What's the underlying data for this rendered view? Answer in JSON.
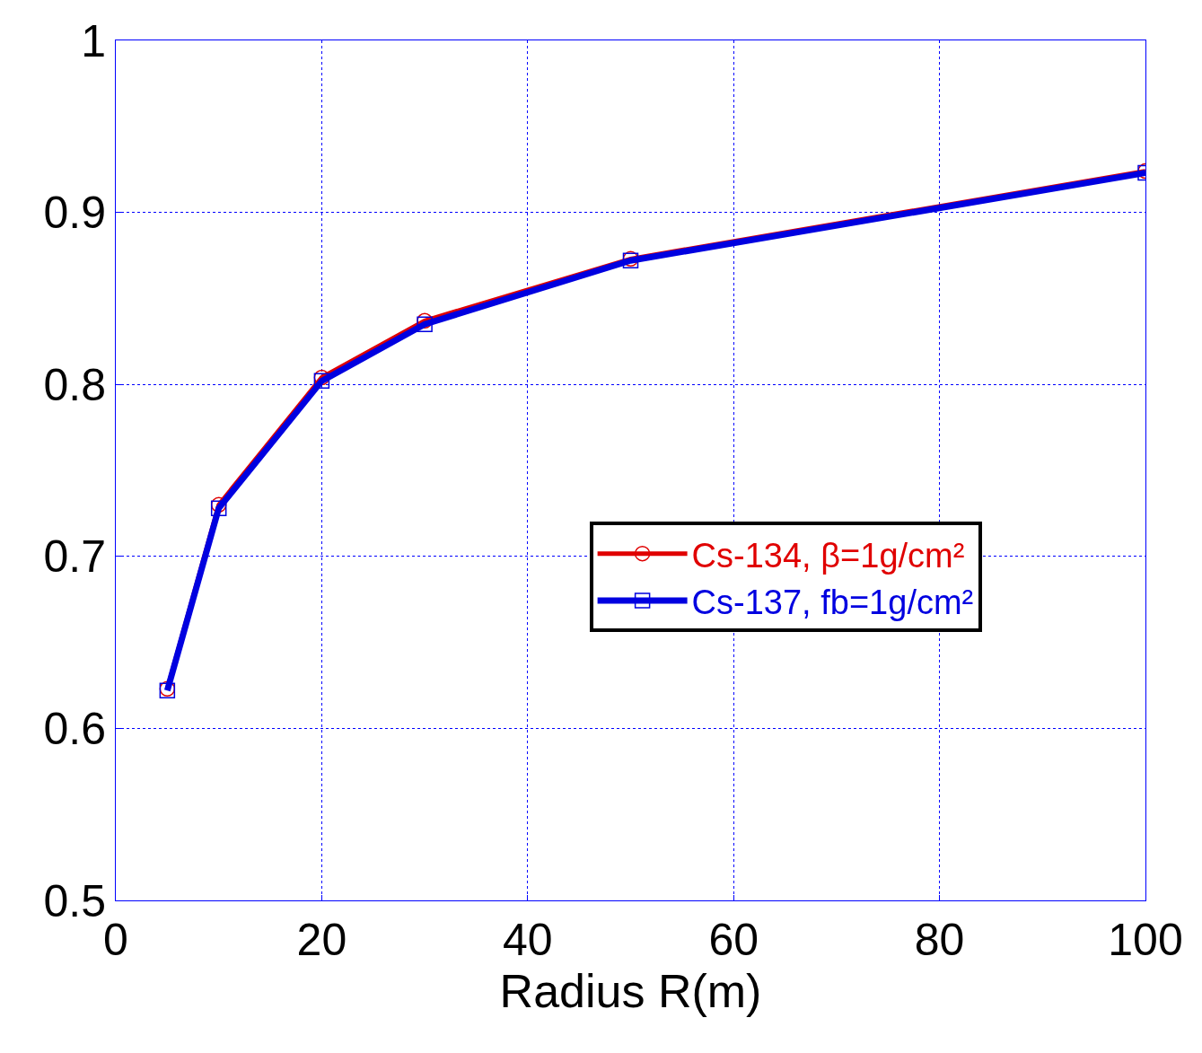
{
  "chart_data": {
    "type": "line",
    "xlabel": "Radius R(m)",
    "x": [
      5,
      10,
      20,
      30,
      50,
      100
    ],
    "series": [
      {
        "name": "Cs-134, β=1g/cm²",
        "color": "#e00000",
        "marker": "circle",
        "values": [
          0.623,
          0.73,
          0.804,
          0.837,
          0.873,
          0.924
        ]
      },
      {
        "name": "Cs-137, fb=1g/cm²",
        "color": "#0000e0",
        "marker": "square",
        "values": [
          0.622,
          0.728,
          0.802,
          0.835,
          0.872,
          0.923
        ]
      }
    ],
    "xlim": [
      0,
      100
    ],
    "xticks": [
      0,
      20,
      40,
      60,
      80,
      100
    ],
    "ylim": [
      0.5,
      1
    ],
    "yticks": [
      0.5,
      0.6,
      0.7,
      0.8,
      0.9,
      1
    ],
    "grid": true,
    "legend": "right",
    "line_style": "solid"
  }
}
